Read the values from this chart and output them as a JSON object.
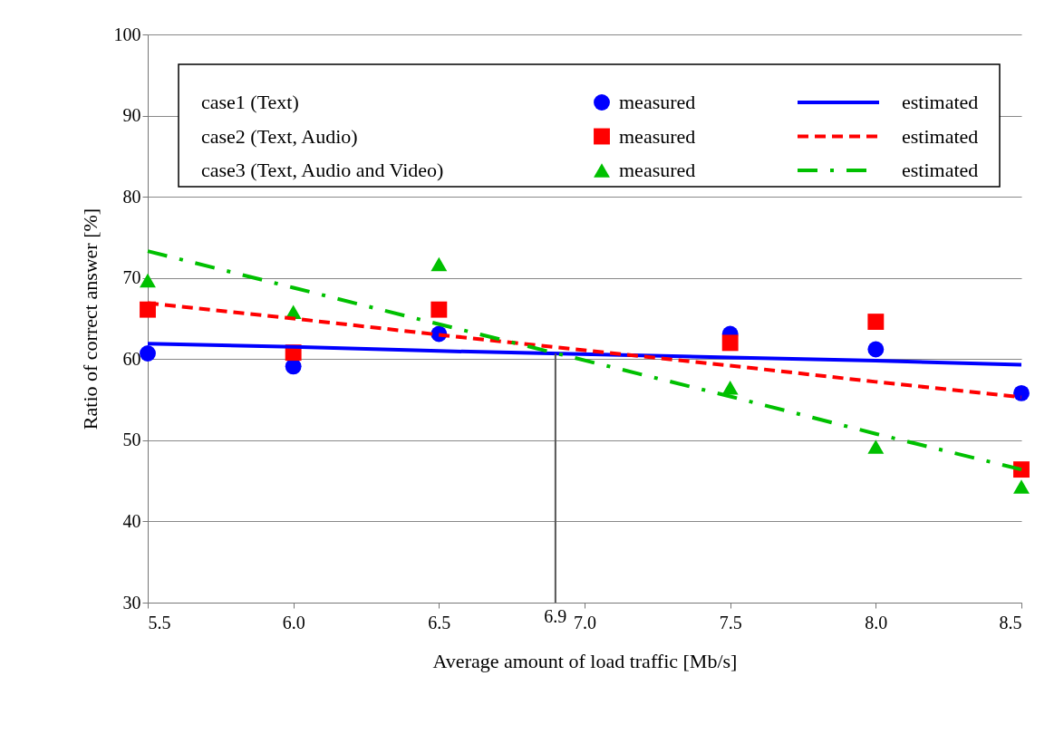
{
  "chart_data": {
    "type": "scatter",
    "xlabel": "Average amount of load traffic [Mb/s]",
    "ylabel": "Ratio of correct answer [%]",
    "x": [
      5.5,
      6.0,
      6.5,
      7.5,
      8.0,
      8.5
    ],
    "xlim": [
      5.5,
      8.5
    ],
    "xticks": [
      5.5,
      {
        "value": 6.0,
        "label": "6.0"
      },
      6.5,
      {
        "value": 7.0,
        "label": "7.0"
      },
      7.5,
      {
        "value": 8.0,
        "label": "8.0"
      },
      8.5
    ],
    "ylim": [
      30,
      100
    ],
    "yticks": [
      30,
      40,
      50,
      60,
      70,
      80,
      90,
      100
    ],
    "grid": "y",
    "legend": "top",
    "annotations": [
      "case1 (Text)",
      "case2 (Text, Audio)",
      "case3 (Text, Audio and Video)"
    ],
    "ref_lines": [
      {
        "axis": "x",
        "value": 6.9,
        "label": "6.9"
      }
    ],
    "series": [
      {
        "name": "measured",
        "type": "scatter",
        "marker": "circle",
        "color": "#0000ff",
        "values": [
          60.7,
          59.1,
          63.1,
          63.1,
          61.2,
          55.8
        ]
      },
      {
        "name": "measured",
        "type": "scatter",
        "marker": "square",
        "color": "#ff0000",
        "values": [
          66.1,
          60.8,
          66.1,
          62.0,
          64.6,
          46.4
        ]
      },
      {
        "name": "measured",
        "type": "scatter",
        "marker": "triangle",
        "color": "#00c000",
        "values": [
          69.7,
          65.8,
          71.7,
          56.5,
          49.2,
          44.3
        ]
      },
      {
        "name": "estimated",
        "type": "line",
        "line_style": "solid",
        "color": "#0000ff",
        "values": [
          61.9,
          61.5,
          61.0,
          60.2,
          59.8,
          59.3
        ]
      },
      {
        "name": "estimated",
        "type": "line",
        "line_style": "dashed",
        "color": "#ff0000",
        "values": [
          66.9,
          65.0,
          63.0,
          59.2,
          57.2,
          55.3
        ]
      },
      {
        "name": "estimated",
        "type": "line",
        "line_style": "dashdot",
        "color": "#00c000",
        "values": [
          73.3,
          68.8,
          64.3,
          55.4,
          50.8,
          46.4
        ]
      }
    ]
  }
}
